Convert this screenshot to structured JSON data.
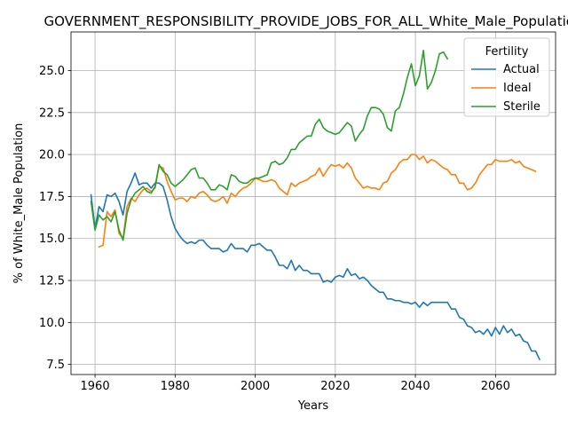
{
  "chart_data": {
    "type": "line",
    "title": "GOVERNMENT_RESPONSIBILITY_PROVIDE_JOBS_FOR_ALL_White_Male_Population",
    "xlabel": "Years",
    "ylabel": "% of White_Male Population",
    "xlim": [
      1954,
      2075
    ],
    "ylim": [
      6.9,
      27.3
    ],
    "xticks": [
      1960,
      1980,
      2000,
      2020,
      2040,
      2060
    ],
    "yticks": [
      7.5,
      10.0,
      12.5,
      15.0,
      17.5,
      20.0,
      22.5,
      25.0
    ],
    "grid": true,
    "legend": {
      "title": "Fertility",
      "placement": "top-right"
    },
    "series": [
      {
        "name": "Actual",
        "color": "#1f77b4",
        "points": [
          [
            1959,
            17.6
          ],
          [
            1960,
            15.6
          ],
          [
            1961,
            16.9
          ],
          [
            1962,
            16.6
          ],
          [
            1963,
            17.6
          ],
          [
            1964,
            17.5
          ],
          [
            1965,
            17.7
          ],
          [
            1966,
            17.2
          ],
          [
            1967,
            16.4
          ],
          [
            1968,
            17.8
          ],
          [
            1969,
            18.3
          ],
          [
            1970,
            18.9
          ],
          [
            1971,
            18.2
          ],
          [
            1972,
            18.3
          ],
          [
            1973,
            18.3
          ],
          [
            1974,
            18.0
          ],
          [
            1975,
            18.3
          ],
          [
            1976,
            18.3
          ],
          [
            1977,
            18.1
          ],
          [
            1978,
            17.3
          ],
          [
            1979,
            16.3
          ],
          [
            1980,
            15.6
          ],
          [
            1981,
            15.2
          ],
          [
            1982,
            14.9
          ],
          [
            1983,
            14.7
          ],
          [
            1984,
            14.8
          ],
          [
            1985,
            14.7
          ],
          [
            1986,
            14.9
          ],
          [
            1987,
            14.9
          ],
          [
            1988,
            14.6
          ],
          [
            1989,
            14.4
          ],
          [
            1990,
            14.4
          ],
          [
            1991,
            14.4
          ],
          [
            1992,
            14.2
          ],
          [
            1993,
            14.3
          ],
          [
            1994,
            14.7
          ],
          [
            1995,
            14.4
          ],
          [
            1996,
            14.4
          ],
          [
            1997,
            14.4
          ],
          [
            1998,
            14.2
          ],
          [
            1999,
            14.6
          ],
          [
            2000,
            14.6
          ],
          [
            2001,
            14.7
          ],
          [
            2002,
            14.5
          ],
          [
            2003,
            14.3
          ],
          [
            2004,
            14.3
          ],
          [
            2005,
            13.9
          ],
          [
            2006,
            13.4
          ],
          [
            2007,
            13.4
          ],
          [
            2008,
            13.2
          ],
          [
            2009,
            13.7
          ],
          [
            2010,
            13.1
          ],
          [
            2011,
            13.4
          ],
          [
            2012,
            13.1
          ],
          [
            2013,
            13.1
          ],
          [
            2014,
            12.9
          ],
          [
            2015,
            12.9
          ],
          [
            2016,
            12.9
          ],
          [
            2017,
            12.4
          ],
          [
            2018,
            12.5
          ],
          [
            2019,
            12.4
          ],
          [
            2020,
            12.7
          ],
          [
            2021,
            12.8
          ],
          [
            2022,
            12.7
          ],
          [
            2023,
            13.2
          ],
          [
            2024,
            12.8
          ],
          [
            2025,
            12.9
          ],
          [
            2026,
            12.6
          ],
          [
            2027,
            12.7
          ],
          [
            2028,
            12.5
          ],
          [
            2029,
            12.2
          ],
          [
            2030,
            12.0
          ],
          [
            2031,
            11.8
          ],
          [
            2032,
            11.8
          ],
          [
            2033,
            11.4
          ],
          [
            2034,
            11.4
          ],
          [
            2035,
            11.3
          ],
          [
            2036,
            11.3
          ],
          [
            2037,
            11.2
          ],
          [
            2038,
            11.2
          ],
          [
            2039,
            11.1
          ],
          [
            2040,
            11.2
          ],
          [
            2041,
            10.9
          ],
          [
            2042,
            11.2
          ],
          [
            2043,
            11.0
          ],
          [
            2044,
            11.2
          ],
          [
            2045,
            11.2
          ],
          [
            2046,
            11.2
          ],
          [
            2047,
            11.2
          ],
          [
            2048,
            11.2
          ],
          [
            2049,
            10.8
          ],
          [
            2050,
            10.8
          ],
          [
            2051,
            10.3
          ],
          [
            2052,
            10.2
          ],
          [
            2053,
            9.8
          ],
          [
            2054,
            9.7
          ],
          [
            2055,
            9.4
          ],
          [
            2056,
            9.5
          ],
          [
            2057,
            9.3
          ],
          [
            2058,
            9.6
          ],
          [
            2059,
            9.2
          ],
          [
            2060,
            9.7
          ],
          [
            2061,
            9.3
          ],
          [
            2062,
            9.8
          ],
          [
            2063,
            9.4
          ],
          [
            2064,
            9.6
          ],
          [
            2065,
            9.2
          ],
          [
            2066,
            9.3
          ],
          [
            2067,
            8.9
          ],
          [
            2068,
            8.8
          ],
          [
            2069,
            8.3
          ],
          [
            2070,
            8.3
          ],
          [
            2071,
            7.8
          ]
        ]
      },
      {
        "name": "Ideal",
        "color": "#ff7f0e",
        "points": [
          [
            1961,
            14.5
          ],
          [
            1962,
            14.6
          ],
          [
            1963,
            16.6
          ],
          [
            1964,
            16.3
          ],
          [
            1965,
            16.7
          ],
          [
            1966,
            15.3
          ],
          [
            1967,
            15.0
          ],
          [
            1968,
            16.9
          ],
          [
            1969,
            17.4
          ],
          [
            1970,
            17.2
          ],
          [
            1971,
            17.6
          ],
          [
            1972,
            17.9
          ],
          [
            1973,
            18.0
          ],
          [
            1974,
            17.8
          ],
          [
            1975,
            18.0
          ],
          [
            1976,
            19.3
          ],
          [
            1977,
            19.2
          ],
          [
            1978,
            18.4
          ],
          [
            1979,
            17.8
          ],
          [
            1980,
            17.3
          ],
          [
            1981,
            17.4
          ],
          [
            1982,
            17.4
          ],
          [
            1983,
            17.2
          ],
          [
            1984,
            17.5
          ],
          [
            1985,
            17.4
          ],
          [
            1986,
            17.7
          ],
          [
            1987,
            17.8
          ],
          [
            1988,
            17.6
          ],
          [
            1989,
            17.3
          ],
          [
            1990,
            17.2
          ],
          [
            1991,
            17.3
          ],
          [
            1992,
            17.5
          ],
          [
            1993,
            17.1
          ],
          [
            1994,
            17.7
          ],
          [
            1995,
            17.5
          ],
          [
            1996,
            17.8
          ],
          [
            1997,
            18.0
          ],
          [
            1998,
            18.1
          ],
          [
            1999,
            18.3
          ],
          [
            2000,
            18.6
          ],
          [
            2001,
            18.5
          ],
          [
            2002,
            18.4
          ],
          [
            2003,
            18.4
          ],
          [
            2004,
            18.5
          ],
          [
            2005,
            18.4
          ],
          [
            2006,
            18.0
          ],
          [
            2007,
            17.8
          ],
          [
            2008,
            17.6
          ],
          [
            2009,
            18.3
          ],
          [
            2010,
            18.1
          ],
          [
            2011,
            18.3
          ],
          [
            2012,
            18.4
          ],
          [
            2013,
            18.5
          ],
          [
            2014,
            18.7
          ],
          [
            2015,
            18.8
          ],
          [
            2016,
            19.2
          ],
          [
            2017,
            18.7
          ],
          [
            2018,
            19.1
          ],
          [
            2019,
            19.4
          ],
          [
            2020,
            19.3
          ],
          [
            2021,
            19.4
          ],
          [
            2022,
            19.2
          ],
          [
            2023,
            19.5
          ],
          [
            2024,
            19.2
          ],
          [
            2025,
            18.6
          ],
          [
            2026,
            18.3
          ],
          [
            2027,
            18.0
          ],
          [
            2028,
            18.1
          ],
          [
            2029,
            18.0
          ],
          [
            2030,
            18.0
          ],
          [
            2031,
            17.9
          ],
          [
            2032,
            18.3
          ],
          [
            2033,
            18.4
          ],
          [
            2034,
            18.9
          ],
          [
            2035,
            19.1
          ],
          [
            2036,
            19.5
          ],
          [
            2037,
            19.7
          ],
          [
            2038,
            19.7
          ],
          [
            2039,
            20.0
          ],
          [
            2040,
            20.0
          ],
          [
            2041,
            19.7
          ],
          [
            2042,
            19.9
          ],
          [
            2043,
            19.5
          ],
          [
            2044,
            19.7
          ],
          [
            2045,
            19.6
          ],
          [
            2046,
            19.4
          ],
          [
            2047,
            19.2
          ],
          [
            2048,
            19.1
          ],
          [
            2049,
            18.8
          ],
          [
            2050,
            18.8
          ],
          [
            2051,
            18.3
          ],
          [
            2052,
            18.3
          ],
          [
            2053,
            17.9
          ],
          [
            2054,
            18.0
          ],
          [
            2055,
            18.3
          ],
          [
            2056,
            18.8
          ],
          [
            2057,
            19.1
          ],
          [
            2058,
            19.4
          ],
          [
            2059,
            19.4
          ],
          [
            2060,
            19.7
          ],
          [
            2061,
            19.6
          ],
          [
            2062,
            19.6
          ],
          [
            2063,
            19.6
          ],
          [
            2064,
            19.7
          ],
          [
            2065,
            19.5
          ],
          [
            2066,
            19.6
          ],
          [
            2067,
            19.3
          ],
          [
            2068,
            19.2
          ],
          [
            2069,
            19.1
          ],
          [
            2070,
            19.0
          ]
        ]
      },
      {
        "name": "Sterile",
        "color": "#2ca02c",
        "points": [
          [
            1959,
            17.2
          ],
          [
            1960,
            15.5
          ],
          [
            1961,
            16.4
          ],
          [
            1962,
            16.1
          ],
          [
            1963,
            16.3
          ],
          [
            1964,
            16.0
          ],
          [
            1965,
            16.6
          ],
          [
            1966,
            15.5
          ],
          [
            1967,
            14.9
          ],
          [
            1968,
            16.5
          ],
          [
            1969,
            17.3
          ],
          [
            1970,
            17.7
          ],
          [
            1971,
            17.9
          ],
          [
            1972,
            18.1
          ],
          [
            1973,
            17.8
          ],
          [
            1974,
            17.7
          ],
          [
            1975,
            18.1
          ],
          [
            1976,
            19.4
          ],
          [
            1977,
            19.0
          ],
          [
            1978,
            18.8
          ],
          [
            1979,
            18.3
          ],
          [
            1980,
            18.1
          ],
          [
            1981,
            18.3
          ],
          [
            1982,
            18.5
          ],
          [
            1983,
            18.8
          ],
          [
            1984,
            19.1
          ],
          [
            1985,
            19.2
          ],
          [
            1986,
            18.6
          ],
          [
            1987,
            18.6
          ],
          [
            1988,
            18.3
          ],
          [
            1989,
            17.9
          ],
          [
            1990,
            17.9
          ],
          [
            1991,
            18.2
          ],
          [
            1992,
            18.1
          ],
          [
            1993,
            17.9
          ],
          [
            1994,
            18.8
          ],
          [
            1995,
            18.7
          ],
          [
            1996,
            18.4
          ],
          [
            1997,
            18.3
          ],
          [
            1998,
            18.3
          ],
          [
            1999,
            18.5
          ],
          [
            2000,
            18.6
          ],
          [
            2001,
            18.6
          ],
          [
            2002,
            18.7
          ],
          [
            2003,
            18.8
          ],
          [
            2004,
            19.5
          ],
          [
            2005,
            19.6
          ],
          [
            2006,
            19.4
          ],
          [
            2007,
            19.5
          ],
          [
            2008,
            19.8
          ],
          [
            2009,
            20.3
          ],
          [
            2010,
            20.3
          ],
          [
            2011,
            20.7
          ],
          [
            2012,
            20.9
          ],
          [
            2013,
            21.1
          ],
          [
            2014,
            21.1
          ],
          [
            2015,
            21.8
          ],
          [
            2016,
            22.1
          ],
          [
            2017,
            21.6
          ],
          [
            2018,
            21.4
          ],
          [
            2019,
            21.3
          ],
          [
            2020,
            21.2
          ],
          [
            2021,
            21.3
          ],
          [
            2022,
            21.6
          ],
          [
            2023,
            21.9
          ],
          [
            2024,
            21.7
          ],
          [
            2025,
            20.8
          ],
          [
            2026,
            21.2
          ],
          [
            2027,
            21.5
          ],
          [
            2028,
            22.3
          ],
          [
            2029,
            22.8
          ],
          [
            2030,
            22.8
          ],
          [
            2031,
            22.7
          ],
          [
            2032,
            22.4
          ],
          [
            2033,
            21.6
          ],
          [
            2034,
            21.4
          ],
          [
            2035,
            22.6
          ],
          [
            2036,
            22.8
          ],
          [
            2037,
            23.6
          ],
          [
            2038,
            24.6
          ],
          [
            2039,
            25.4
          ],
          [
            2040,
            24.1
          ],
          [
            2041,
            24.7
          ],
          [
            2042,
            26.2
          ],
          [
            2043,
            23.9
          ],
          [
            2044,
            24.3
          ],
          [
            2045,
            25.0
          ],
          [
            2046,
            26.0
          ],
          [
            2047,
            26.1
          ],
          [
            2048,
            25.7
          ]
        ]
      }
    ]
  }
}
